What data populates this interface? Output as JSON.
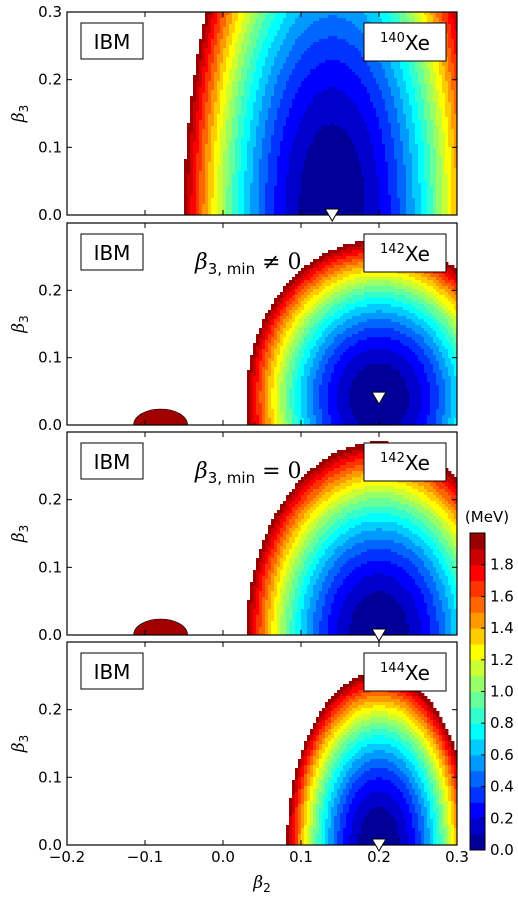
{
  "chart_data": {
    "type": "heatmap",
    "xlabel": "β2",
    "ylabel": "β3",
    "xlim": [
      -0.2,
      0.3
    ],
    "ylim": [
      0.0,
      0.3
    ],
    "x_ticks": [
      "−0.2",
      "−0.1",
      "0.0",
      "0.1",
      "0.2",
      "0.3"
    ],
    "y_ticks": [
      "0.0",
      "0.1",
      "0.2",
      "0.3"
    ],
    "colorbar": {
      "unit": "(MeV)",
      "range": [
        0.0,
        2.0
      ],
      "ticks": [
        "0.0",
        "0.2",
        "0.4",
        "0.6",
        "0.8",
        "1.0",
        "1.2",
        "1.4",
        "1.6",
        "1.8"
      ],
      "colormap": "jet",
      "contour_step_MeV": 0.1
    },
    "panels": [
      {
        "model_label": "IBM",
        "nucleus_mass": "140",
        "nucleus_symbol": "Xe",
        "annotation": "",
        "minimum": {
          "beta2": 0.14,
          "beta3": 0.0
        },
        "y_max_label": "0.3"
      },
      {
        "model_label": "IBM",
        "nucleus_mass": "142",
        "nucleus_symbol": "Xe",
        "annotation": "β3, min ≠ 0",
        "annotation_main": "β",
        "annotation_sub": "3, min",
        "annotation_rel": " ≠ 0",
        "minimum": {
          "beta2": 0.2,
          "beta3": 0.04
        },
        "y_max_label": ""
      },
      {
        "model_label": "IBM",
        "nucleus_mass": "142",
        "nucleus_symbol": "Xe",
        "annotation": "β3, min = 0",
        "annotation_main": "β",
        "annotation_sub": "3, min",
        "annotation_rel": " = 0",
        "minimum": {
          "beta2": 0.2,
          "beta3": 0.0
        },
        "y_max_label": ""
      },
      {
        "model_label": "IBM",
        "nucleus_mass": "144",
        "nucleus_symbol": "Xe",
        "annotation": "",
        "minimum": {
          "beta2": 0.2,
          "beta3": 0.0
        },
        "y_max_label": ""
      }
    ]
  }
}
